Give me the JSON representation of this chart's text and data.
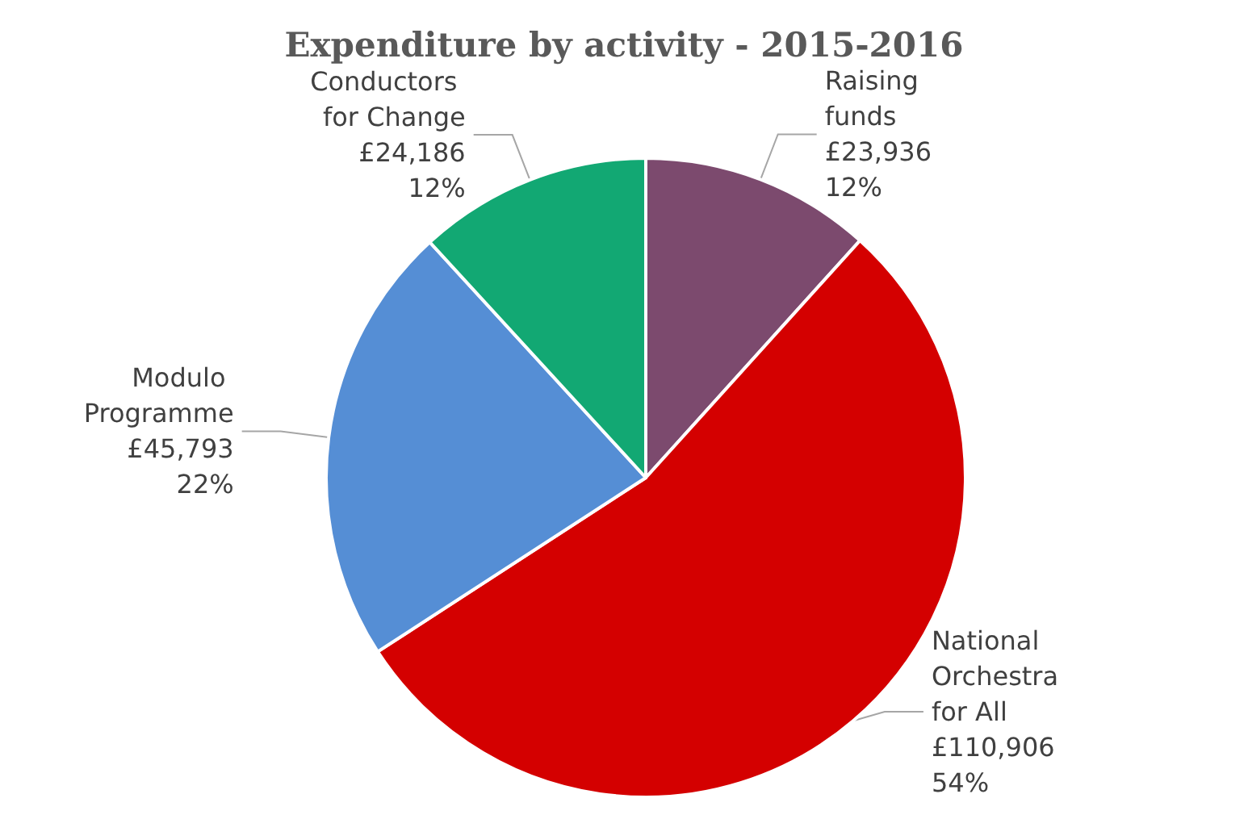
{
  "chart_data": {
    "type": "pie",
    "title": "Expenditure by activity - 2015-2016",
    "categories": [
      "Raising funds",
      "National Orchestra for All",
      "Modulo Programme",
      "Conductors for Change"
    ],
    "values": [
      23936,
      110906,
      45793,
      24186
    ],
    "colors": [
      "#7c4a6e",
      "#d40000",
      "#558ed5",
      "#12a873"
    ],
    "value_labels": [
      "£23,936\n12%",
      "£110,906\n54%",
      "£45,793\n22%",
      "£24,186\n12%"
    ],
    "legend": false
  }
}
